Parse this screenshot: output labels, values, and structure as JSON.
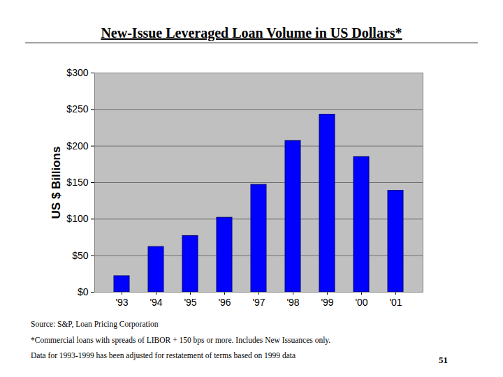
{
  "chart_data": {
    "type": "bar",
    "title": "New-Issue Leveraged Loan Volume in US Dollars*",
    "y_label": "US $ Billions",
    "categories": [
      "'93",
      "'94",
      "'95",
      "'96",
      "'97",
      "'98",
      "'99",
      "'00",
      "'01"
    ],
    "values": [
      22,
      62,
      77,
      102,
      147,
      207,
      243,
      185,
      139
    ],
    "color": "#0000ff",
    "ylim": [
      0,
      300
    ],
    "yticks": [
      {
        "value": 0,
        "label": "$0"
      },
      {
        "value": 50,
        "label": "$50"
      },
      {
        "value": 100,
        "label": "$100"
      },
      {
        "value": 150,
        "label": "$150"
      },
      {
        "value": 200,
        "label": "$200"
      },
      {
        "value": 250,
        "label": "$250"
      },
      {
        "value": 300,
        "label": "$300"
      }
    ],
    "grid": true,
    "notes": [
      "Source: S&P, Loan Pricing Corporation",
      "*Commercial loans with spreads of LIBOR + 150 bps or more.  Includes New Issuances only.",
      "Data for 1993-1999 has been adjusted for restatement of terms based on 1999 data"
    ],
    "page_number": "51"
  }
}
